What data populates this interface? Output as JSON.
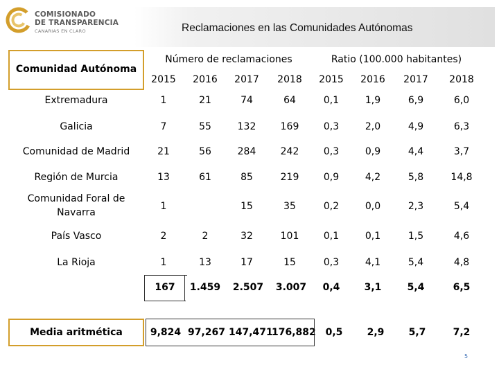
{
  "logo": {
    "line1": "COMISIONADO",
    "line2": "DE TRANSPARENCIA",
    "line3": "CANARIAS EN CLARO",
    "colors": {
      "ring_outer": "#d39e2b",
      "ring_inner": "#e8c46a"
    }
  },
  "title": "Reclamaciones en las Comunidades Autónomas",
  "table": {
    "col_header_region": "Comunidad Autónoma",
    "group_claims": "Número de reclamaciones",
    "group_ratio": "Ratio (100.000 habitantes)",
    "years": [
      "2015",
      "2016",
      "2017",
      "2018",
      "2015",
      "2016",
      "2017",
      "2018"
    ],
    "rows": [
      {
        "region": "Extremadura",
        "values": [
          "1",
          "21",
          "74",
          "64",
          "0,1",
          "1,9",
          "6,9",
          "6,0"
        ]
      },
      {
        "region": "Galicia",
        "values": [
          "7",
          "55",
          "132",
          "169",
          "0,3",
          "2,0",
          "4,9",
          "6,3"
        ]
      },
      {
        "region": "Comunidad de Madrid",
        "values": [
          "21",
          "56",
          "284",
          "242",
          "0,3",
          "0,9",
          "4,4",
          "3,7"
        ]
      },
      {
        "region": "Región de Murcia",
        "values": [
          "13",
          "61",
          "85",
          "219",
          "0,9",
          "4,2",
          "5,8",
          "14,8"
        ]
      },
      {
        "region_line1": "Comunidad Foral de",
        "region_line2": "Navarra",
        "values": [
          "1",
          "",
          "15",
          "35",
          "0,2",
          "0,0",
          "2,3",
          "5,4"
        ]
      },
      {
        "region": "País Vasco",
        "values": [
          "2",
          "2",
          "32",
          "101",
          "0,1",
          "0,1",
          "1,5",
          "4,6"
        ]
      },
      {
        "region": "La Rioja",
        "values": [
          "1",
          "13",
          "17",
          "15",
          "0,3",
          "4,1",
          "5,4",
          "4,8"
        ]
      }
    ],
    "totals": [
      "167",
      "1.459",
      "2.507",
      "3.007",
      "0,4",
      "3,1",
      "5,4",
      "6,5"
    ],
    "mean_label": "Media aritmética",
    "mean": [
      "9,824",
      "97,267",
      "147,471",
      "176,882",
      "0,5",
      "2,9",
      "5,7",
      "7,2"
    ]
  },
  "page_number": "5"
}
